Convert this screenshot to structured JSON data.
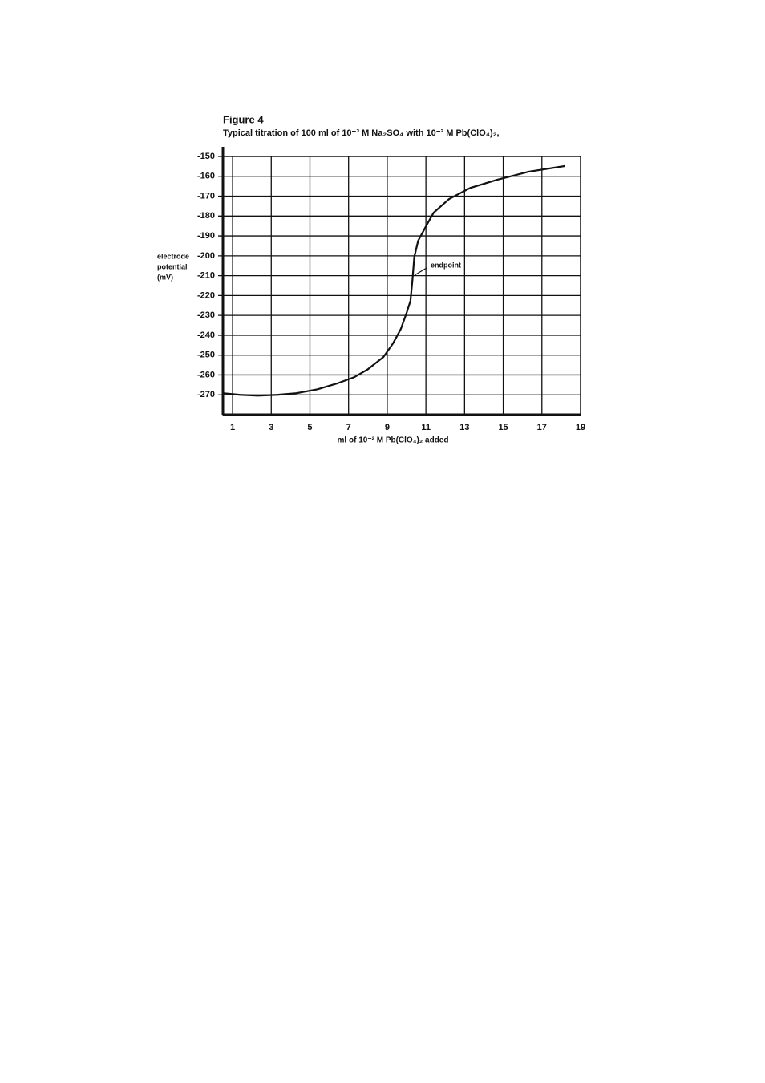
{
  "chart_data": {
    "type": "line",
    "title": "Figure 4",
    "subtitle": "Typical titration of 100 ml of 10⁻³ M Na₂SO₄ with 10⁻² M Pb(ClO₄)₂,",
    "xlabel": "ml of 10⁻² M Pb(ClO₄)₂ added",
    "ylabel": [
      "electrode",
      "potential",
      "(mV)"
    ],
    "annotation": "endpoint",
    "x": [
      0.5,
      1.4,
      2.3,
      3.3,
      4.3,
      5.4,
      6.4,
      7.3,
      8.0,
      8.8,
      9.3,
      9.7,
      10.0,
      10.2,
      10.3,
      10.4,
      10.6,
      11.0,
      11.4,
      12.2,
      13.3,
      14.7,
      16.3,
      18.2
    ],
    "series": [
      {
        "color": "#111111",
        "values": [
          -269.2,
          -270,
          -270.4,
          -270,
          -269.2,
          -267.2,
          -264.3,
          -261.1,
          -257.1,
          -251,
          -244.1,
          -236.9,
          -228.8,
          -222.7,
          -212.6,
          -200.5,
          -192.4,
          -185.2,
          -178.3,
          -171.4,
          -165.8,
          -161.7,
          -157.7,
          -154.8
        ]
      }
    ],
    "xlim": [
      0.5,
      19
    ],
    "xticks": [
      1,
      3,
      5,
      7,
      9,
      11,
      13,
      15,
      17,
      19
    ],
    "ylim": [
      -280,
      -150
    ],
    "yticks": [
      -270,
      -260,
      -250,
      -240,
      -230,
      -220,
      -210,
      -200,
      -190,
      -180,
      -170,
      -160,
      -150
    ],
    "grid": true
  }
}
